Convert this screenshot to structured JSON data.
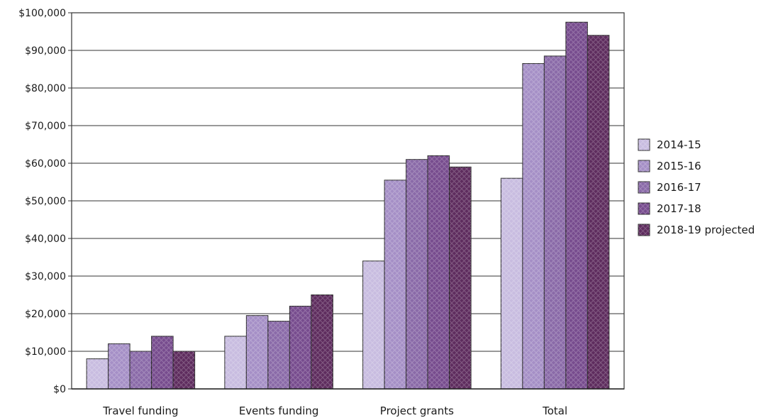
{
  "chart_data": {
    "type": "bar",
    "title": "",
    "xlabel": "",
    "ylabel": "",
    "categories": [
      "Travel funding",
      "Events funding",
      "Project grants",
      "Total"
    ],
    "ylim": [
      0,
      100000
    ],
    "yticks": [
      0,
      10000,
      20000,
      30000,
      40000,
      50000,
      60000,
      70000,
      80000,
      90000,
      100000
    ],
    "ytick_labels": [
      "$0",
      "$10,000",
      "$20,000",
      "$30,000",
      "$40,000",
      "$50,000",
      "$60,000",
      "$70,000",
      "$80,000",
      "$90,000",
      "$100,000"
    ],
    "grid": true,
    "legend_position": "right",
    "series": [
      {
        "name": "2014-15",
        "color": "#c8bce0",
        "values": [
          8000,
          14000,
          34000,
          56000
        ]
      },
      {
        "name": "2015-16",
        "color": "#a58fc6",
        "values": [
          12000,
          19500,
          55500,
          86500
        ]
      },
      {
        "name": "2016-17",
        "color": "#8a6aa8",
        "values": [
          10000,
          18000,
          61000,
          88500
        ]
      },
      {
        "name": "2017-18",
        "color": "#774c8e",
        "values": [
          14000,
          22000,
          62000,
          97500
        ]
      },
      {
        "name": "2018-19 projected",
        "color": "#5e2c5e",
        "values": [
          10000,
          25000,
          59000,
          94000
        ]
      }
    ]
  }
}
